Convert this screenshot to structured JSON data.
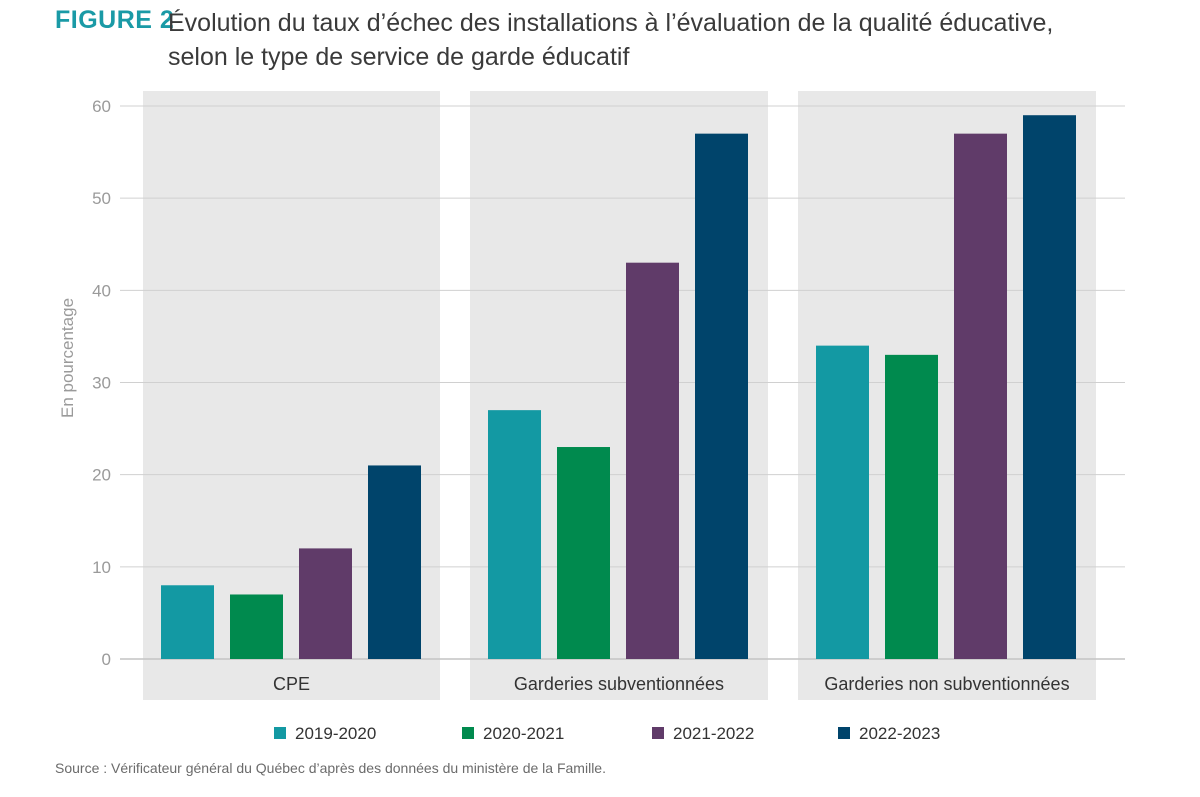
{
  "header": {
    "figure_label": "FIGURE 2",
    "title_line1": "Évolution du taux d’échec des installations à l’évaluation de la qualité éducative,",
    "title_line2": "selon le type de service de garde éducatif"
  },
  "footer": {
    "source": "Source : Vérificateur général du Québec d’après des données du ministère de la Famille."
  },
  "colors": {
    "2019-2020": "#1399a3",
    "2020-2021": "#008a4e",
    "2021-2022": "#603b69",
    "2022-2023": "#00446b",
    "panel": "#e8e8e8",
    "grid": "#d0d0d0",
    "tick": "#9a9a9a"
  },
  "chart_data": {
    "type": "bar",
    "title": "Évolution du taux d’échec des installations à l’évaluation de la qualité éducative, selon le type de service de garde éducatif",
    "xlabel": "",
    "ylabel": "En pourcentage",
    "ylim": [
      0,
      60
    ],
    "yticks": [
      0,
      10,
      20,
      30,
      40,
      50,
      60
    ],
    "grid": true,
    "legend_position": "bottom",
    "categories": [
      "CPE",
      "Garderies subventionnées",
      "Garderies non subventionnées"
    ],
    "series": [
      {
        "name": "2019-2020",
        "values": [
          8,
          27,
          34
        ]
      },
      {
        "name": "2020-2021",
        "values": [
          7,
          23,
          33
        ]
      },
      {
        "name": "2021-2022",
        "values": [
          12,
          43,
          57
        ]
      },
      {
        "name": "2022-2023",
        "values": [
          21,
          57,
          59
        ]
      }
    ]
  }
}
